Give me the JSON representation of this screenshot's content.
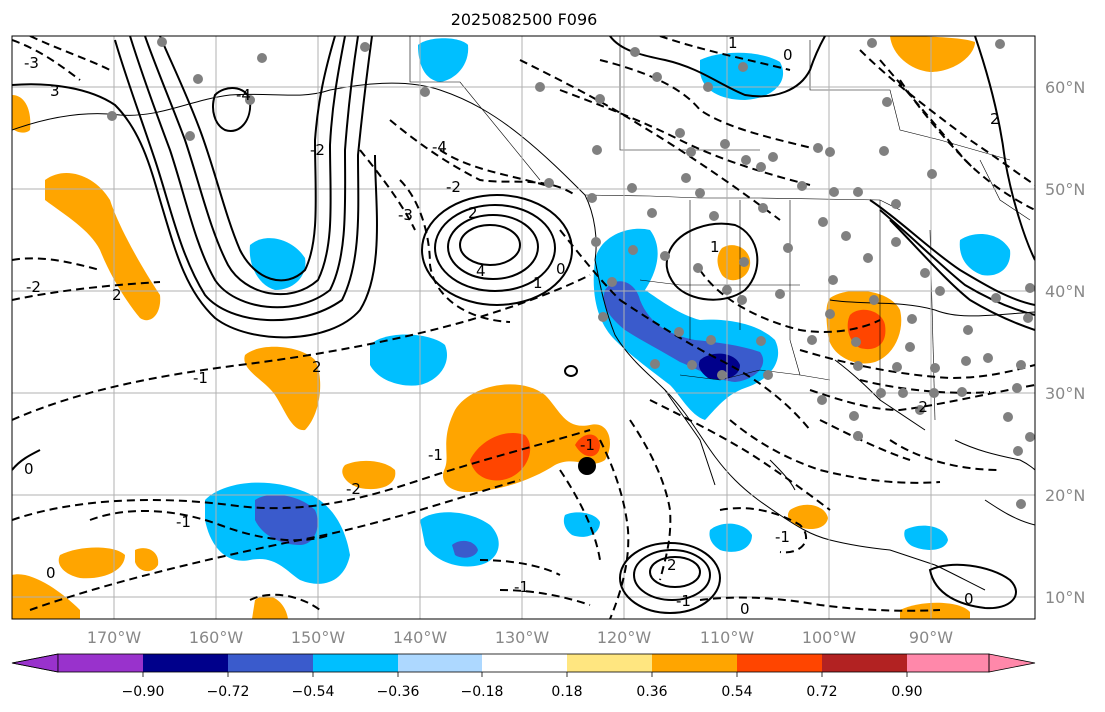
{
  "title": "2025082500 F096",
  "map": {
    "lon_labels": [
      "170°W",
      "160°W",
      "150°W",
      "140°W",
      "130°W",
      "120°W",
      "110°W",
      "100°W",
      "90°W"
    ],
    "lat_labels": [
      "60°N",
      "50°N",
      "40°N",
      "30°N",
      "20°N",
      "10°N"
    ],
    "contour_labels": [
      "-3",
      "3",
      "-2",
      "-4",
      "-3",
      "-2",
      "2",
      "4",
      "1",
      "0",
      "-1",
      "-2",
      "-1",
      "0",
      "-1",
      "2",
      "-1",
      "-1",
      "2",
      "0",
      "-2",
      "1",
      "-1",
      "0",
      "2",
      "-2",
      "-4",
      "2",
      "0",
      "1",
      "0",
      "-1"
    ],
    "marker_icon": "filled-circle-marker"
  },
  "colorbar": {
    "tick_labels": [
      "−0.90",
      "−0.72",
      "−0.54",
      "−0.36",
      "−0.18",
      "0.18",
      "0.36",
      "0.54",
      "0.72",
      "0.90"
    ],
    "colors": [
      "#9932cc",
      "#00008b",
      "#3a5bcc",
      "#00bfff",
      "#add8ff",
      "#ffffff",
      "#ffe680",
      "#ffa500",
      "#ff4500",
      "#b22222",
      "#ff88aa"
    ]
  },
  "colors": {
    "land": "#808080",
    "grid": "#b0b0b0",
    "tick_text": "#888888",
    "warm_fill": "#ffa500",
    "warm_core": "#ff4500",
    "cool_fill": "#00bfff",
    "cool_core": "#3a5bcc",
    "cool_deep": "#00008b"
  }
}
